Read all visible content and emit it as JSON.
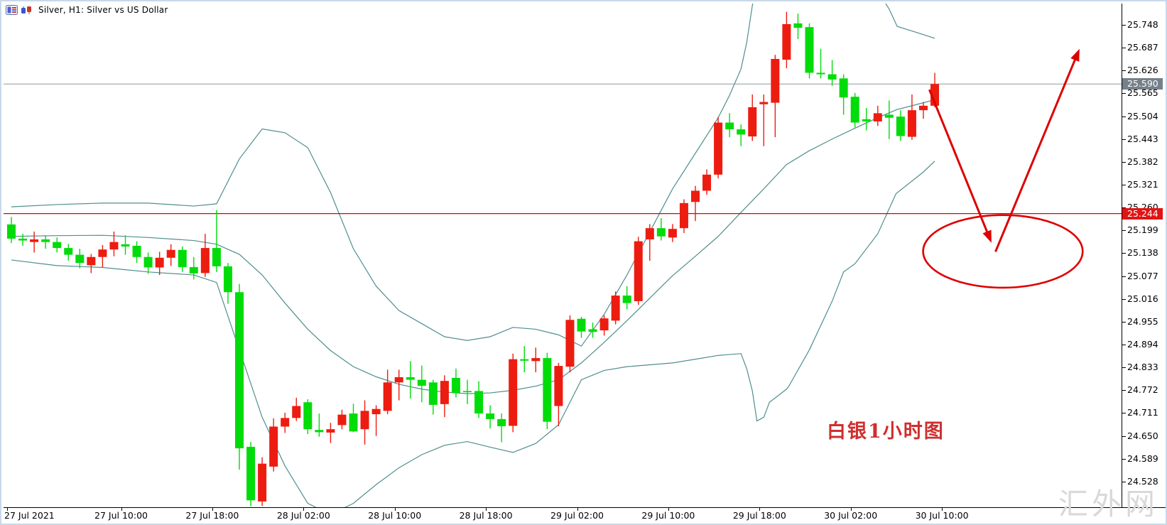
{
  "window": {
    "title": "Silver, H1:  Silver vs US Dollar",
    "icons": [
      "chart-properties-icon",
      "candles-icon"
    ],
    "watermark": "汇外网"
  },
  "colors": {
    "background": "#ffffff",
    "candle_up": "#ED1C10",
    "candle_down": "#00DC0A",
    "bollinger": "#4F8E8E",
    "support_line": "#DD0000",
    "current_price_line": "#8F979E",
    "current_tag_bg": "#75808A",
    "support_tag_bg": "#E11414",
    "annotation": "#DD0000",
    "annotation_text": "#CF2F2F",
    "watermark_text": "#D9D9D9",
    "axis_text": "#000000"
  },
  "y_axis": {
    "ticks": [
      "25.748",
      "25.687",
      "25.626",
      "25.565",
      "25.504",
      "25.443",
      "25.382",
      "25.321",
      "25.260",
      "25.199",
      "25.138",
      "25.077",
      "25.016",
      "24.955",
      "24.894",
      "24.833",
      "24.772",
      "24.711",
      "24.650",
      "24.589",
      "24.528"
    ],
    "price_tags": [
      {
        "label": "25.590",
        "price": 25.59,
        "type": "current"
      },
      {
        "label": "25.244",
        "price": 25.244,
        "type": "support"
      }
    ]
  },
  "x_axis": {
    "labels": [
      {
        "text": "27 Jul 2021",
        "hour": 0
      },
      {
        "text": "27 Jul 10:00",
        "hour": 10
      },
      {
        "text": "27 Jul 18:00",
        "hour": 18
      },
      {
        "text": "28 Jul 02:00",
        "hour": 26
      },
      {
        "text": "28 Jul 10:00",
        "hour": 34
      },
      {
        "text": "28 Jul 18:00",
        "hour": 42
      },
      {
        "text": "29 Jul 02:00",
        "hour": 50
      },
      {
        "text": "29 Jul 10:00",
        "hour": 58
      },
      {
        "text": "29 Jul 18:00",
        "hour": 66
      },
      {
        "text": "30 Jul 02:00",
        "hour": 74
      },
      {
        "text": "30 Jul 10:00",
        "hour": 82
      }
    ]
  },
  "chart_data": {
    "type": "candlestick",
    "symbol": "Silver",
    "timeframe": "H1",
    "title": "Silver vs US Dollar",
    "start_time": "2021-07-27 00:00",
    "interval_hours": 1,
    "ylim": [
      24.46,
      25.79
    ],
    "grid": false,
    "current_price": 25.59,
    "support_level": 25.244,
    "candles_ohlc": [
      [
        25.215,
        25.235,
        25.165,
        25.177
      ],
      [
        25.177,
        25.19,
        25.158,
        25.172
      ],
      [
        25.168,
        25.196,
        25.14,
        25.175
      ],
      [
        25.175,
        25.186,
        25.15,
        25.168
      ],
      [
        25.168,
        25.18,
        25.14,
        25.152
      ],
      [
        25.152,
        25.163,
        25.118,
        25.134
      ],
      [
        25.134,
        25.15,
        25.098,
        25.112
      ],
      [
        25.106,
        25.136,
        25.085,
        25.128
      ],
      [
        25.128,
        25.16,
        25.1,
        25.148
      ],
      [
        25.148,
        25.196,
        25.13,
        25.168
      ],
      [
        25.162,
        25.186,
        25.134,
        25.156
      ],
      [
        25.158,
        25.17,
        25.112,
        25.128
      ],
      [
        25.128,
        25.14,
        25.083,
        25.1
      ],
      [
        25.1,
        25.142,
        25.08,
        25.126
      ],
      [
        25.126,
        25.162,
        25.104,
        25.147
      ],
      [
        25.147,
        25.156,
        25.088,
        25.101
      ],
      [
        25.101,
        25.128,
        25.068,
        25.084
      ],
      [
        25.085,
        25.19,
        25.075,
        25.152
      ],
      [
        25.152,
        25.253,
        25.088,
        25.103
      ],
      [
        25.103,
        25.112,
        25.003,
        25.034
      ],
      [
        25.034,
        25.056,
        24.56,
        24.617
      ],
      [
        24.621,
        24.634,
        24.462,
        24.478
      ],
      [
        24.475,
        24.593,
        24.463,
        24.576
      ],
      [
        24.568,
        24.697,
        24.555,
        24.675
      ],
      [
        24.675,
        24.712,
        24.658,
        24.698
      ],
      [
        24.698,
        24.752,
        24.69,
        24.73
      ],
      [
        24.74,
        24.748,
        24.655,
        24.668
      ],
      [
        24.666,
        24.71,
        24.648,
        24.66
      ],
      [
        24.659,
        24.685,
        24.631,
        24.668
      ],
      [
        24.679,
        24.72,
        24.668,
        24.707
      ],
      [
        24.71,
        24.736,
        24.66,
        24.662
      ],
      [
        24.668,
        24.745,
        24.627,
        24.717
      ],
      [
        24.708,
        24.732,
        24.65,
        24.722
      ],
      [
        24.717,
        24.827,
        24.708,
        24.793
      ],
      [
        24.793,
        24.827,
        24.745,
        24.807
      ],
      [
        24.807,
        24.85,
        24.75,
        24.8
      ],
      [
        24.8,
        24.838,
        24.74,
        24.784
      ],
      [
        24.793,
        24.8,
        24.707,
        24.733
      ],
      [
        24.735,
        24.812,
        24.7,
        24.797
      ],
      [
        24.805,
        24.83,
        24.753,
        24.765
      ],
      [
        24.77,
        24.8,
        24.735,
        24.768
      ],
      [
        24.77,
        24.796,
        24.698,
        24.71
      ],
      [
        24.71,
        24.732,
        24.67,
        24.695
      ],
      [
        24.695,
        24.71,
        24.633,
        24.676
      ],
      [
        24.677,
        24.87,
        24.66,
        24.855
      ],
      [
        24.855,
        24.89,
        24.82,
        24.851
      ],
      [
        24.85,
        24.886,
        24.82,
        24.858
      ],
      [
        24.858,
        24.872,
        24.668,
        24.688
      ],
      [
        24.73,
        24.845,
        24.676,
        24.837
      ],
      [
        24.835,
        24.972,
        24.82,
        24.96
      ],
      [
        24.963,
        24.968,
        24.912,
        24.929
      ],
      [
        24.935,
        24.953,
        24.912,
        24.928
      ],
      [
        24.932,
        24.972,
        24.918,
        24.964
      ],
      [
        24.958,
        25.036,
        24.948,
        25.025
      ],
      [
        25.025,
        25.05,
        24.988,
        25.005
      ],
      [
        25.01,
        25.182,
        25.0,
        25.17
      ],
      [
        25.175,
        25.216,
        25.118,
        25.205
      ],
      [
        25.205,
        25.232,
        25.172,
        25.183
      ],
      [
        25.18,
        25.216,
        25.168,
        25.203
      ],
      [
        25.205,
        25.282,
        25.192,
        25.272
      ],
      [
        25.275,
        25.318,
        25.224,
        25.305
      ],
      [
        25.305,
        25.362,
        25.294,
        25.348
      ],
      [
        25.348,
        25.502,
        25.338,
        25.487
      ],
      [
        25.487,
        25.512,
        25.448,
        25.469
      ],
      [
        25.469,
        25.482,
        25.424,
        25.455
      ],
      [
        25.45,
        25.562,
        25.438,
        25.528
      ],
      [
        25.536,
        25.562,
        25.424,
        25.542
      ],
      [
        25.54,
        25.668,
        25.448,
        25.657
      ],
      [
        25.655,
        25.783,
        25.632,
        25.75
      ],
      [
        25.752,
        25.778,
        25.71,
        25.74
      ],
      [
        25.742,
        25.752,
        25.605,
        25.62
      ],
      [
        25.62,
        25.684,
        25.605,
        25.616
      ],
      [
        25.616,
        25.654,
        25.585,
        25.602
      ],
      [
        25.605,
        25.616,
        25.508,
        25.554
      ],
      [
        25.556,
        25.566,
        25.474,
        25.487
      ],
      [
        25.496,
        25.526,
        25.466,
        25.49
      ],
      [
        25.49,
        25.532,
        25.478,
        25.512
      ],
      [
        25.508,
        25.546,
        25.443,
        25.5
      ],
      [
        25.503,
        25.52,
        25.438,
        25.451
      ],
      [
        25.449,
        25.562,
        25.441,
        25.52
      ],
      [
        25.52,
        25.542,
        25.497,
        25.532
      ],
      [
        25.532,
        25.62,
        25.528,
        25.59
      ]
    ],
    "bollinger_bands": {
      "upper": [
        [
          0,
          25.262
        ],
        [
          4,
          25.268
        ],
        [
          8,
          25.272
        ],
        [
          12,
          25.272
        ],
        [
          16,
          25.264
        ],
        [
          18,
          25.27
        ],
        [
          20,
          25.39
        ],
        [
          22,
          25.47
        ],
        [
          24,
          25.46
        ],
        [
          26,
          25.42
        ],
        [
          28,
          25.3
        ],
        [
          30,
          25.15
        ],
        [
          32,
          25.05
        ],
        [
          34,
          24.985
        ],
        [
          36,
          24.95
        ],
        [
          38,
          24.915
        ],
        [
          40,
          24.905
        ],
        [
          42,
          24.915
        ],
        [
          44,
          24.94
        ],
        [
          46,
          24.935
        ],
        [
          48,
          24.92
        ],
        [
          50,
          24.89
        ],
        [
          52,
          24.975
        ],
        [
          54,
          25.08
        ],
        [
          56,
          25.195
        ],
        [
          58,
          25.31
        ],
        [
          60,
          25.405
        ],
        [
          62,
          25.5
        ],
        [
          63,
          25.56
        ],
        [
          64,
          25.63
        ],
        [
          64.5,
          25.7
        ],
        [
          65,
          25.8
        ],
        [
          66,
          25.95
        ],
        [
          68,
          26.05
        ],
        [
          70,
          26.08
        ],
        [
          72,
          26.02
        ],
        [
          74,
          25.92
        ],
        [
          76,
          25.84
        ],
        [
          77,
          25.79
        ],
        [
          77.7,
          25.744
        ],
        [
          80,
          25.722
        ],
        [
          81,
          25.712
        ]
      ],
      "middle": [
        [
          0,
          25.183
        ],
        [
          4,
          25.185
        ],
        [
          8,
          25.186
        ],
        [
          12,
          25.18
        ],
        [
          16,
          25.172
        ],
        [
          18,
          25.162
        ],
        [
          20,
          25.135
        ],
        [
          22,
          25.08
        ],
        [
          24,
          25.005
        ],
        [
          26,
          24.935
        ],
        [
          28,
          24.878
        ],
        [
          30,
          24.835
        ],
        [
          32,
          24.808
        ],
        [
          34,
          24.788
        ],
        [
          36,
          24.775
        ],
        [
          38,
          24.767
        ],
        [
          40,
          24.763
        ],
        [
          42,
          24.765
        ],
        [
          44,
          24.772
        ],
        [
          46,
          24.783
        ],
        [
          48,
          24.8
        ],
        [
          50,
          24.845
        ],
        [
          52,
          24.9
        ],
        [
          54,
          24.958
        ],
        [
          56,
          25.018
        ],
        [
          58,
          25.078
        ],
        [
          60,
          25.13
        ],
        [
          62,
          25.183
        ],
        [
          64,
          25.247
        ],
        [
          66,
          25.31
        ],
        [
          68,
          25.375
        ],
        [
          70,
          25.412
        ],
        [
          72,
          25.443
        ],
        [
          74,
          25.472
        ],
        [
          76,
          25.5
        ],
        [
          77.7,
          25.522
        ],
        [
          80,
          25.54
        ],
        [
          81,
          25.548
        ]
      ],
      "lower": [
        [
          0,
          25.12
        ],
        [
          4,
          25.105
        ],
        [
          8,
          25.1
        ],
        [
          12,
          25.088
        ],
        [
          16,
          25.08
        ],
        [
          18,
          25.06
        ],
        [
          20,
          24.88
        ],
        [
          22,
          24.7
        ],
        [
          24,
          24.57
        ],
        [
          26,
          24.47
        ],
        [
          28,
          24.44
        ],
        [
          30,
          24.47
        ],
        [
          32,
          24.52
        ],
        [
          34,
          24.565
        ],
        [
          36,
          24.6
        ],
        [
          38,
          24.625
        ],
        [
          40,
          24.635
        ],
        [
          42,
          24.62
        ],
        [
          44,
          24.606
        ],
        [
          46,
          24.63
        ],
        [
          48,
          24.68
        ],
        [
          50,
          24.8
        ],
        [
          52,
          24.825
        ],
        [
          54,
          24.835
        ],
        [
          56,
          24.84
        ],
        [
          58,
          24.845
        ],
        [
          60,
          24.855
        ],
        [
          62,
          24.865
        ],
        [
          64,
          24.87
        ],
        [
          64.5,
          24.83
        ],
        [
          65,
          24.77
        ],
        [
          65.4,
          24.69
        ],
        [
          66,
          24.7
        ],
        [
          66.5,
          24.74
        ],
        [
          68,
          24.775
        ],
        [
          68.2,
          24.783
        ],
        [
          70,
          24.88
        ],
        [
          72,
          25.01
        ],
        [
          73,
          25.088
        ],
        [
          74,
          25.11
        ],
        [
          76,
          25.19
        ],
        [
          77.6,
          25.297
        ],
        [
          80,
          25.355
        ],
        [
          81,
          25.384
        ]
      ]
    },
    "annotations": {
      "down_arrow": {
        "from_bar": 80.9,
        "from_price": 25.575,
        "to_bar": 86.35,
        "to_price": 25.166
      },
      "up_arrow": {
        "from_bar": 86.7,
        "from_price": 25.142,
        "to_bar": 94.07,
        "to_price": 25.684
      },
      "ellipse": {
        "center_bar": 87.35,
        "center_price": 25.143,
        "rx_bars": 7.0,
        "ry_price": 0.097
      },
      "label": {
        "text": "白银1小时图",
        "bar": 71.9,
        "price": 24.705
      }
    }
  }
}
